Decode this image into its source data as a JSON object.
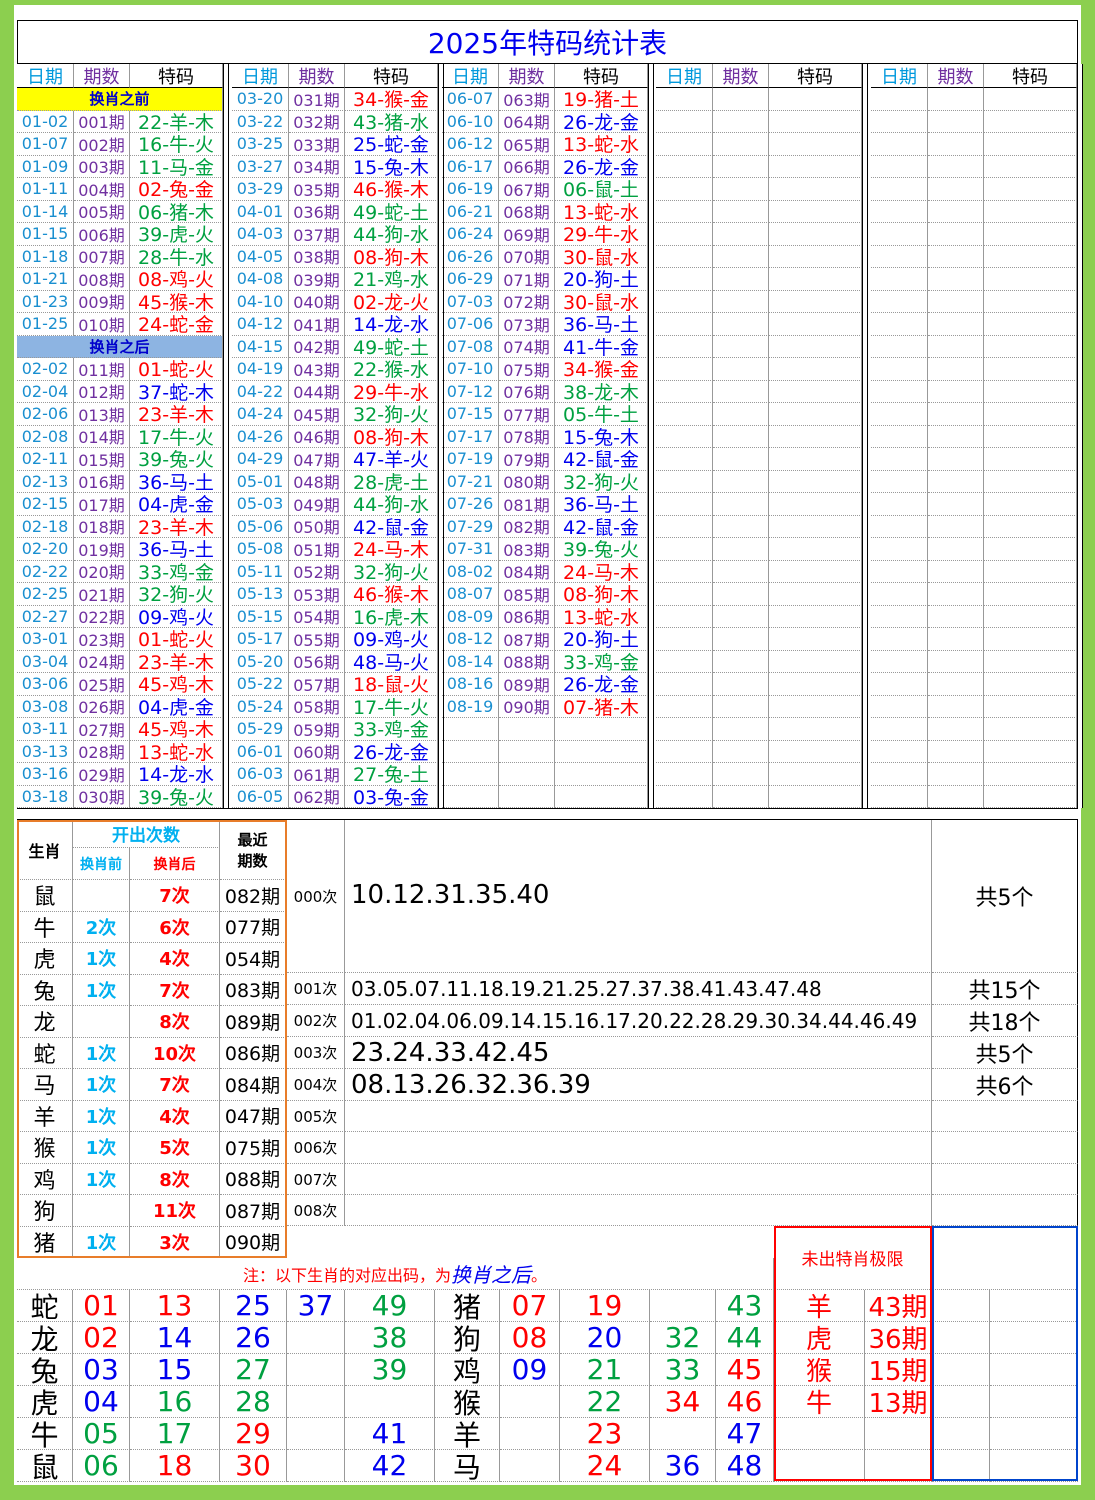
{
  "title": "2025年特码统计表",
  "headers": [
    "日期",
    "期数",
    "特码"
  ],
  "palette": {
    "r": "#ff0000",
    "g": "#00a040",
    "b": "#0000ee"
  },
  "columns": [
    [
      {
        "label": "换肖之前",
        "background": "#ffff00"
      },
      [
        "01-02",
        "001期",
        "22-羊-木",
        "g"
      ],
      [
        "01-07",
        "002期",
        "16-牛-火",
        "g"
      ],
      [
        "01-09",
        "003期",
        "11-马-金",
        "g"
      ],
      [
        "01-11",
        "004期",
        "02-兔-金",
        "r"
      ],
      [
        "01-14",
        "005期",
        "06-猪-木",
        "g"
      ],
      [
        "01-15",
        "006期",
        "39-虎-火",
        "g"
      ],
      [
        "01-18",
        "007期",
        "28-牛-水",
        "g"
      ],
      [
        "01-21",
        "008期",
        "08-鸡-火",
        "r"
      ],
      [
        "01-23",
        "009期",
        "45-猴-木",
        "r"
      ],
      [
        "01-25",
        "010期",
        "24-蛇-金",
        "r"
      ],
      {
        "label": "换肖之后",
        "background": "#8db4e2"
      },
      [
        "02-02",
        "011期",
        "01-蛇-火",
        "r"
      ],
      [
        "02-04",
        "012期",
        "37-蛇-木",
        "b"
      ],
      [
        "02-06",
        "013期",
        "23-羊-木",
        "r"
      ],
      [
        "02-08",
        "014期",
        "17-牛-火",
        "g"
      ],
      [
        "02-11",
        "015期",
        "39-兔-火",
        "g"
      ],
      [
        "02-13",
        "016期",
        "36-马-土",
        "b"
      ],
      [
        "02-15",
        "017期",
        "04-虎-金",
        "b"
      ],
      [
        "02-18",
        "018期",
        "23-羊-木",
        "r"
      ],
      [
        "02-20",
        "019期",
        "36-马-土",
        "b"
      ],
      [
        "02-22",
        "020期",
        "33-鸡-金",
        "g"
      ],
      [
        "02-25",
        "021期",
        "32-狗-火",
        "g"
      ],
      [
        "02-27",
        "022期",
        "09-鸡-火",
        "b"
      ],
      [
        "03-01",
        "023期",
        "01-蛇-火",
        "r"
      ],
      [
        "03-04",
        "024期",
        "23-羊-木",
        "r"
      ],
      [
        "03-06",
        "025期",
        "45-鸡-木",
        "r"
      ],
      [
        "03-08",
        "026期",
        "04-虎-金",
        "b"
      ],
      [
        "03-11",
        "027期",
        "45-鸡-木",
        "r"
      ],
      [
        "03-13",
        "028期",
        "13-蛇-水",
        "r"
      ],
      [
        "03-16",
        "029期",
        "14-龙-水",
        "b"
      ],
      [
        "03-18",
        "030期",
        "39-兔-火",
        "g"
      ]
    ],
    [
      [
        "03-20",
        "031期",
        "34-猴-金",
        "r"
      ],
      [
        "03-22",
        "032期",
        "43-猪-水",
        "g"
      ],
      [
        "03-25",
        "033期",
        "25-蛇-金",
        "b"
      ],
      [
        "03-27",
        "034期",
        "15-兔-木",
        "b"
      ],
      [
        "03-29",
        "035期",
        "46-猴-木",
        "r"
      ],
      [
        "04-01",
        "036期",
        "49-蛇-土",
        "g"
      ],
      [
        "04-03",
        "037期",
        "44-狗-水",
        "g"
      ],
      [
        "04-05",
        "038期",
        "08-狗-木",
        "r"
      ],
      [
        "04-08",
        "039期",
        "21-鸡-水",
        "g"
      ],
      [
        "04-10",
        "040期",
        "02-龙-火",
        "r"
      ],
      [
        "04-12",
        "041期",
        "14-龙-水",
        "b"
      ],
      [
        "04-15",
        "042期",
        "49-蛇-土",
        "g"
      ],
      [
        "04-19",
        "043期",
        "22-猴-水",
        "g"
      ],
      [
        "04-22",
        "044期",
        "29-牛-水",
        "r"
      ],
      [
        "04-24",
        "045期",
        "32-狗-火",
        "g"
      ],
      [
        "04-26",
        "046期",
        "08-狗-木",
        "r"
      ],
      [
        "04-29",
        "047期",
        "47-羊-火",
        "b"
      ],
      [
        "05-01",
        "048期",
        "28-虎-土",
        "g"
      ],
      [
        "05-03",
        "049期",
        "44-狗-水",
        "g"
      ],
      [
        "05-06",
        "050期",
        "42-鼠-金",
        "b"
      ],
      [
        "05-08",
        "051期",
        "24-马-木",
        "r"
      ],
      [
        "05-11",
        "052期",
        "32-狗-火",
        "g"
      ],
      [
        "05-13",
        "053期",
        "46-猴-木",
        "r"
      ],
      [
        "05-15",
        "054期",
        "16-虎-木",
        "g"
      ],
      [
        "05-17",
        "055期",
        "09-鸡-火",
        "b"
      ],
      [
        "05-20",
        "056期",
        "48-马-火",
        "b"
      ],
      [
        "05-22",
        "057期",
        "18-鼠-火",
        "r"
      ],
      [
        "05-24",
        "058期",
        "17-牛-火",
        "g"
      ],
      [
        "05-29",
        "059期",
        "33-鸡-金",
        "g"
      ],
      [
        "06-01",
        "060期",
        "26-龙-金",
        "b"
      ],
      [
        "06-03",
        "061期",
        "27-兔-土",
        "g"
      ],
      [
        "06-05",
        "062期",
        "03-兔-金",
        "b"
      ]
    ],
    [
      [
        "06-07",
        "063期",
        "19-猪-土",
        "r"
      ],
      [
        "06-10",
        "064期",
        "26-龙-金",
        "b"
      ],
      [
        "06-12",
        "065期",
        "13-蛇-水",
        "r"
      ],
      [
        "06-17",
        "066期",
        "26-龙-金",
        "b"
      ],
      [
        "06-19",
        "067期",
        "06-鼠-土",
        "g"
      ],
      [
        "06-21",
        "068期",
        "13-蛇-水",
        "r"
      ],
      [
        "06-24",
        "069期",
        "29-牛-水",
        "r"
      ],
      [
        "06-26",
        "070期",
        "30-鼠-水",
        "r"
      ],
      [
        "06-29",
        "071期",
        "20-狗-土",
        "b"
      ],
      [
        "07-03",
        "072期",
        "30-鼠-水",
        "r"
      ],
      [
        "07-06",
        "073期",
        "36-马-土",
        "b"
      ],
      [
        "07-08",
        "074期",
        "41-牛-金",
        "b"
      ],
      [
        "07-10",
        "075期",
        "34-猴-金",
        "r"
      ],
      [
        "07-12",
        "076期",
        "38-龙-木",
        "g"
      ],
      [
        "07-15",
        "077期",
        "05-牛-土",
        "g"
      ],
      [
        "07-17",
        "078期",
        "15-兔-木",
        "b"
      ],
      [
        "07-19",
        "079期",
        "42-鼠-金",
        "b"
      ],
      [
        "07-21",
        "080期",
        "32-狗-火",
        "g"
      ],
      [
        "07-26",
        "081期",
        "36-马-土",
        "b"
      ],
      [
        "07-29",
        "082期",
        "42-鼠-金",
        "b"
      ],
      [
        "07-31",
        "083期",
        "39-兔-火",
        "g"
      ],
      [
        "08-02",
        "084期",
        "24-马-木",
        "r"
      ],
      [
        "08-07",
        "085期",
        "08-狗-木",
        "r"
      ],
      [
        "08-09",
        "086期",
        "13-蛇-水",
        "r"
      ],
      [
        "08-12",
        "087期",
        "20-狗-土",
        "b"
      ],
      [
        "08-14",
        "088期",
        "33-鸡-金",
        "g"
      ],
      [
        "08-16",
        "089期",
        "26-龙-金",
        "b"
      ],
      [
        "08-19",
        "090期",
        "07-猪-木",
        "r"
      ]
    ]
  ],
  "zodiac_table": {
    "headers": {
      "zodiac": "生肖",
      "count": "开出次数",
      "before": "换肖前",
      "after": "换肖后",
      "recent": "最近期数"
    },
    "rows": [
      [
        "鼠",
        null,
        "7次",
        "082期"
      ],
      [
        "牛",
        "2次",
        "6次",
        "077期"
      ],
      [
        "虎",
        "1次",
        "4次",
        "054期"
      ],
      [
        "兔",
        "1次",
        "7次",
        "083期"
      ],
      [
        "龙",
        null,
        "8次",
        "089期"
      ],
      [
        "蛇",
        "1次",
        "10次",
        "086期"
      ],
      [
        "马",
        "1次",
        "7次",
        "084期"
      ],
      [
        "羊",
        "1次",
        "4次",
        "047期"
      ],
      [
        "猴",
        "1次",
        "5次",
        "075期"
      ],
      [
        "鸡",
        "1次",
        "8次",
        "088期"
      ],
      [
        "狗",
        null,
        "11次",
        "087期"
      ],
      [
        "猪",
        "1次",
        "3次",
        "090期"
      ]
    ]
  },
  "miss_table": {
    "rows": [
      [
        "000次",
        "10.12.31.35.40",
        "共5个"
      ],
      [
        "001次",
        "03.05.07.11.18.19.21.25.27.37.38.41.43.47.48",
        "共15个"
      ],
      [
        "002次",
        "01.02.04.06.09.14.15.16.17.20.22.28.29.30.34.44.46.49",
        "共18个"
      ],
      [
        "003次",
        "23.24.33.42.45",
        "共5个"
      ],
      [
        "004次",
        "08.13.26.32.36.39",
        "共6个"
      ],
      [
        "005次",
        null,
        null
      ],
      [
        "006次",
        null,
        null
      ],
      [
        "007次",
        null,
        null
      ],
      [
        "008次",
        null,
        null
      ]
    ]
  },
  "note": [
    "注：以下生肖的对应出码，为",
    "换肖之后",
    "。"
  ],
  "number_grid": {
    "left": [
      {
        "zodiac": "蛇",
        "cells": [
          [
            "01",
            "r"
          ],
          [
            "13",
            "r"
          ],
          [
            "25",
            "b"
          ],
          [
            "37",
            "b"
          ],
          [
            "49",
            "g"
          ]
        ]
      },
      {
        "zodiac": "龙",
        "cells": [
          [
            "02",
            "r"
          ],
          [
            "14",
            "b"
          ],
          [
            "26",
            "b"
          ],
          null,
          [
            "38",
            "g"
          ]
        ]
      },
      {
        "zodiac": "兔",
        "cells": [
          [
            "03",
            "b"
          ],
          [
            "15",
            "b"
          ],
          [
            "27",
            "g"
          ],
          null,
          [
            "39",
            "g"
          ]
        ]
      },
      {
        "zodiac": "虎",
        "cells": [
          [
            "04",
            "b"
          ],
          [
            "16",
            "g"
          ],
          [
            "28",
            "g"
          ],
          null,
          null
        ]
      },
      {
        "zodiac": "牛",
        "cells": [
          [
            "05",
            "g"
          ],
          [
            "17",
            "g"
          ],
          [
            "29",
            "r"
          ],
          null,
          [
            "41",
            "b"
          ]
        ]
      },
      {
        "zodiac": "鼠",
        "cells": [
          [
            "06",
            "g"
          ],
          [
            "18",
            "r"
          ],
          [
            "30",
            "r"
          ],
          null,
          [
            "42",
            "b"
          ]
        ]
      }
    ],
    "right": [
      {
        "zodiac": "猪",
        "cells": [
          [
            "07",
            "r"
          ],
          [
            "19",
            "r"
          ],
          null,
          [
            "43",
            "g"
          ]
        ]
      },
      {
        "zodiac": "狗",
        "cells": [
          [
            "08",
            "r"
          ],
          [
            "20",
            "b"
          ],
          [
            "32",
            "g"
          ],
          [
            "44",
            "g"
          ]
        ]
      },
      {
        "zodiac": "鸡",
        "cells": [
          [
            "09",
            "b"
          ],
          [
            "21",
            "g"
          ],
          [
            "33",
            "g"
          ],
          [
            "45",
            "r"
          ]
        ]
      },
      {
        "zodiac": "猴",
        "cells": [
          null,
          [
            "22",
            "g"
          ],
          [
            "34",
            "r"
          ],
          [
            "46",
            "r"
          ]
        ]
      },
      {
        "zodiac": "羊",
        "cells": [
          null,
          [
            "23",
            "r"
          ],
          null,
          [
            "47",
            "b"
          ]
        ]
      },
      {
        "zodiac": "马",
        "cells": [
          null,
          [
            "24",
            "r"
          ],
          [
            "36",
            "b"
          ],
          [
            "48",
            "b"
          ]
        ]
      }
    ]
  },
  "limit_table": {
    "title": "未出特肖极限",
    "rows": [
      [
        "羊",
        "43期"
      ],
      [
        "虎",
        "36期"
      ],
      [
        "猴",
        "15期"
      ],
      [
        "牛",
        "13期"
      ]
    ]
  }
}
